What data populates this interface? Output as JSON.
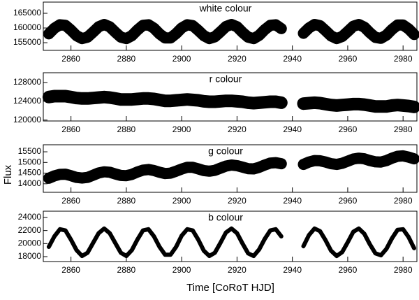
{
  "chart_data": [
    {
      "type": "line",
      "title": "white colour",
      "color": "#000000",
      "x": [
        2852,
        2854,
        2856,
        2858,
        2860,
        2862,
        2864,
        2866,
        2868,
        2870,
        2872,
        2874,
        2876,
        2878,
        2880,
        2882,
        2884,
        2886,
        2888,
        2890,
        2892,
        2894,
        2896,
        2898,
        2900,
        2902,
        2904,
        2906,
        2908,
        2910,
        2912,
        2914,
        2916,
        2918,
        2920,
        2922,
        2924,
        2926,
        2928,
        2930,
        2932,
        2934,
        2936,
        2940,
        2944,
        2946,
        2948,
        2950,
        2952,
        2954,
        2956,
        2958,
        2960,
        2962,
        2964,
        2966,
        2968,
        2970,
        2972,
        2974,
        2976,
        2978,
        2980,
        2982,
        2984
      ],
      "values": [
        158000,
        159900,
        161100,
        160900,
        159300,
        157400,
        156400,
        156900,
        158600,
        160400,
        161200,
        160400,
        158600,
        156900,
        156400,
        157400,
        159300,
        160900,
        161100,
        159900,
        158000,
        156600,
        156600,
        158100,
        160000,
        161100,
        160800,
        159200,
        157400,
        156400,
        157000,
        158700,
        160500,
        161200,
        160400,
        158500,
        156900,
        156400,
        157500,
        159400,
        160900,
        161100,
        159800,
        null,
        158200,
        160000,
        161200,
        160800,
        159100,
        157300,
        156400,
        157100,
        158800,
        160600,
        161200,
        160300,
        158400,
        156800,
        156500,
        157600,
        159500,
        161000,
        161000,
        159700,
        157800
      ],
      "xlim": [
        2850,
        2985
      ],
      "xticks": [
        2860,
        2880,
        2900,
        2920,
        2940,
        2960,
        2980
      ],
      "ylim": [
        152400,
        168800
      ],
      "yticks": [
        155000,
        160000,
        165000
      ]
    },
    {
      "type": "line",
      "title": "r colour",
      "color": "#000000",
      "x": [
        2852,
        2854,
        2856,
        2858,
        2860,
        2862,
        2864,
        2866,
        2868,
        2870,
        2872,
        2874,
        2876,
        2878,
        2880,
        2882,
        2884,
        2886,
        2888,
        2890,
        2892,
        2894,
        2896,
        2898,
        2900,
        2902,
        2904,
        2906,
        2908,
        2910,
        2912,
        2914,
        2916,
        2918,
        2920,
        2922,
        2924,
        2926,
        2928,
        2930,
        2932,
        2934,
        2936,
        2940,
        2944,
        2946,
        2948,
        2950,
        2952,
        2954,
        2956,
        2958,
        2960,
        2962,
        2964,
        2966,
        2968,
        2970,
        2972,
        2974,
        2976,
        2978,
        2980,
        2982,
        2984
      ],
      "values": [
        124900,
        125100,
        125100,
        125100,
        124900,
        124700,
        124600,
        124600,
        124700,
        124800,
        124900,
        124800,
        124600,
        124400,
        124400,
        124400,
        124500,
        124600,
        124600,
        124500,
        124300,
        124100,
        124100,
        124200,
        124300,
        124400,
        124300,
        124200,
        124000,
        123900,
        123900,
        124000,
        124100,
        124100,
        124000,
        123900,
        123700,
        123600,
        123700,
        123800,
        123900,
        123900,
        123700,
        null,
        123500,
        123600,
        123700,
        123600,
        123400,
        123200,
        123100,
        123200,
        123300,
        123400,
        123400,
        123300,
        123100,
        122900,
        122900,
        122900,
        123100,
        123200,
        123100,
        123000,
        122800
      ],
      "xlim": [
        2850,
        2985
      ],
      "xticks": [
        2860,
        2880,
        2900,
        2920,
        2940,
        2960,
        2980
      ],
      "ylim": [
        119800,
        130100
      ],
      "yticks": [
        120000,
        124000,
        128000
      ]
    },
    {
      "type": "line",
      "title": "g colour",
      "color": "#000000",
      "ylabel": "Flux",
      "x": [
        2852,
        2854,
        2856,
        2858,
        2860,
        2862,
        2864,
        2866,
        2868,
        2870,
        2872,
        2874,
        2876,
        2878,
        2880,
        2882,
        2884,
        2886,
        2888,
        2890,
        2892,
        2894,
        2896,
        2898,
        2900,
        2902,
        2904,
        2906,
        2908,
        2910,
        2912,
        2914,
        2916,
        2918,
        2920,
        2922,
        2924,
        2926,
        2928,
        2930,
        2932,
        2934,
        2936,
        2940,
        2944,
        2946,
        2948,
        2950,
        2952,
        2954,
        2956,
        2958,
        2960,
        2962,
        2964,
        2966,
        2968,
        2970,
        2972,
        2974,
        2976,
        2978,
        2980,
        2982,
        2984
      ],
      "values": [
        14260,
        14370,
        14440,
        14450,
        14380,
        14300,
        14270,
        14300,
        14400,
        14510,
        14560,
        14540,
        14460,
        14390,
        14380,
        14440,
        14550,
        14640,
        14670,
        14620,
        14540,
        14480,
        14500,
        14590,
        14690,
        14770,
        14770,
        14700,
        14620,
        14590,
        14630,
        14730,
        14830,
        14880,
        14850,
        14780,
        14710,
        14700,
        14770,
        14880,
        14970,
        14990,
        14940,
        null,
        14910,
        15020,
        15090,
        15080,
        15020,
        14940,
        14910,
        14960,
        15060,
        15160,
        15200,
        15170,
        15090,
        15030,
        15020,
        15090,
        15200,
        15290,
        15310,
        15250,
        15170
      ],
      "xlim": [
        2850,
        2985
      ],
      "xticks": [
        2860,
        2880,
        2900,
        2920,
        2940,
        2960,
        2980
      ],
      "ylim": [
        13600,
        15830
      ],
      "yticks": [
        14000,
        14500,
        15000,
        15500
      ]
    },
    {
      "type": "line",
      "title": "b colour",
      "color": "#000000",
      "xlabel": "Time [CoRoT HJD]",
      "x": [
        2852,
        2854,
        2856,
        2858,
        2860,
        2862,
        2864,
        2866,
        2868,
        2870,
        2872,
        2874,
        2876,
        2878,
        2880,
        2882,
        2884,
        2886,
        2888,
        2890,
        2892,
        2894,
        2896,
        2898,
        2900,
        2902,
        2904,
        2906,
        2908,
        2910,
        2912,
        2914,
        2916,
        2918,
        2920,
        2922,
        2924,
        2926,
        2928,
        2930,
        2932,
        2934,
        2936,
        2940,
        2944,
        2946,
        2948,
        2950,
        2952,
        2954,
        2956,
        2958,
        2960,
        2962,
        2964,
        2966,
        2968,
        2970,
        2972,
        2974,
        2976,
        2978,
        2980,
        2982,
        2984
      ],
      "values": [
        19500,
        21100,
        22200,
        22000,
        20600,
        19000,
        18100,
        18600,
        20100,
        21600,
        22300,
        21600,
        20100,
        18600,
        18100,
        19000,
        20600,
        22000,
        22200,
        21100,
        19500,
        18300,
        18300,
        19500,
        21200,
        22200,
        22000,
        20600,
        18900,
        18100,
        18600,
        20100,
        21700,
        22300,
        21600,
        20000,
        18500,
        18100,
        19100,
        20700,
        22000,
        22200,
        21100,
        null,
        19600,
        21300,
        22300,
        21900,
        20500,
        18900,
        18100,
        18700,
        20200,
        21800,
        22300,
        21500,
        19900,
        18500,
        18200,
        19200,
        20800,
        22100,
        22200,
        21000,
        19300
      ],
      "xlim": [
        2850,
        2985
      ],
      "xticks": [
        2860,
        2880,
        2900,
        2920,
        2940,
        2960,
        2980
      ],
      "ylim": [
        17250,
        24960
      ],
      "yticks": [
        18000,
        20000,
        22000,
        24000
      ]
    }
  ]
}
